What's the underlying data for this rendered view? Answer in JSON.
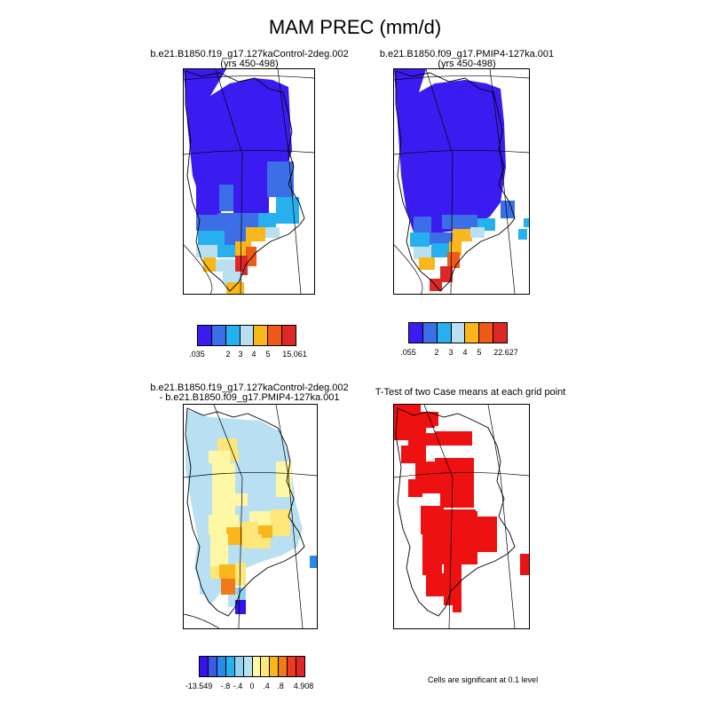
{
  "title": "MAM PREC (mm/d)",
  "panels": {
    "p1": {
      "line1": "b.e21.B1850.f19_g17.127kaControl-2deg.002",
      "line2": "(yrs 450-498)"
    },
    "p2": {
      "line1": "b.e21.B1850.f09_g17.PMIP4-127ka.001",
      "line2": "(yrs 450-498)"
    },
    "p3": {
      "line1": "b.e21.B1850.f19_g17.127kaControl-2deg.002",
      "line2": "- b.e21.B1850.f09_g17.PMIP4-127ka.001"
    },
    "p4": {
      "line1": "T-Test of two Case means at each grid point",
      "line2": ""
    }
  },
  "colorbars": {
    "cb1": {
      "colors": [
        "#3a1cf0",
        "#3c6ee8",
        "#27b0ee",
        "#b8e0f2",
        "#f9b71b",
        "#f05a17",
        "#dd2828"
      ],
      "labels": [
        ".035",
        "2",
        "3",
        "4",
        "5",
        "15.061"
      ]
    },
    "cb2": {
      "colors": [
        "#3a1cf0",
        "#3c6ee8",
        "#27b0ee",
        "#b8e0f2",
        "#f9b71b",
        "#f05a17",
        "#dd2828"
      ],
      "labels": [
        ".055",
        "2",
        "3",
        "4",
        "5",
        "22.627"
      ]
    },
    "cb3": {
      "colors": [
        "#3414e8",
        "#3a5ae8",
        "#2a8ae8",
        "#27b0ee",
        "#8fd2f2",
        "#b8e0f2",
        "#fdf7a6",
        "#fde67a",
        "#f9b71b",
        "#f07a17",
        "#ee3a20",
        "#dd2828"
      ],
      "labels": [
        "-13.549",
        "-.8",
        "-.4",
        "0",
        ".4",
        ".8",
        "4.908"
      ]
    }
  },
  "footnote": "Cells are significant at 0.1 level"
}
